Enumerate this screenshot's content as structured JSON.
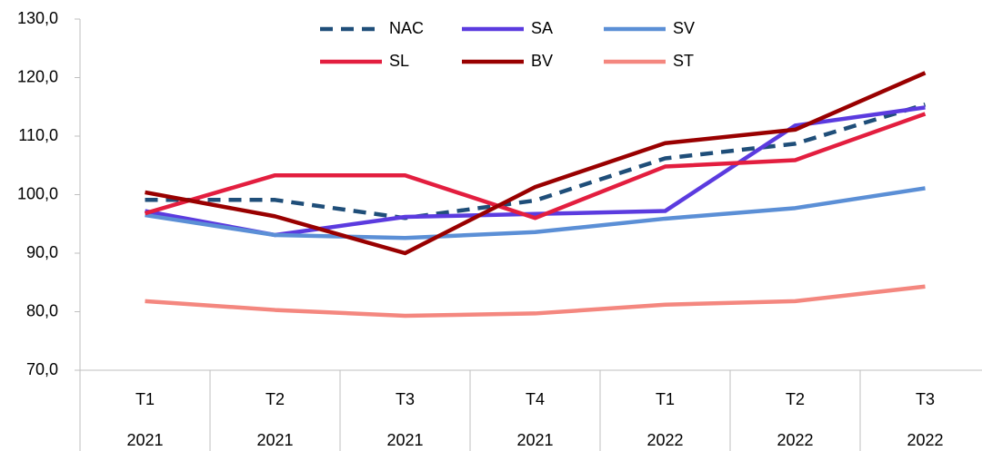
{
  "chart_data": {
    "type": "line",
    "categories": [
      [
        "T1",
        "2021"
      ],
      [
        "T2",
        "2021"
      ],
      [
        "T3",
        "2021"
      ],
      [
        "T4",
        "2021"
      ],
      [
        "T1",
        "2022"
      ],
      [
        "T2",
        "2022"
      ],
      [
        "T3",
        "2022"
      ]
    ],
    "series": [
      {
        "name": "NAC",
        "color": "#1f4e79",
        "dashed": true,
        "values": [
          99.1,
          99.1,
          96.0,
          99.0,
          106.2,
          108.7,
          115.4
        ]
      },
      {
        "name": "SA",
        "color": "#5b3bdf",
        "values": [
          97.2,
          93.1,
          96.2,
          96.7,
          97.2,
          111.8,
          114.9
        ]
      },
      {
        "name": "SV",
        "color": "#5b8fd6",
        "values": [
          96.5,
          93.1,
          92.6,
          93.6,
          95.9,
          97.7,
          101.1
        ]
      },
      {
        "name": "SL",
        "color": "#e31e3f",
        "values": [
          96.8,
          103.3,
          103.3,
          96.0,
          104.8,
          105.9,
          113.8
        ]
      },
      {
        "name": "BV",
        "color": "#990000",
        "values": [
          100.4,
          96.3,
          90.0,
          101.3,
          108.8,
          111.1,
          120.8
        ]
      },
      {
        "name": "ST",
        "color": "#f4877f",
        "values": [
          81.8,
          80.3,
          79.3,
          79.7,
          81.2,
          81.8,
          84.3
        ]
      }
    ],
    "ylim": [
      70,
      130
    ],
    "yticks": [
      {
        "value": 70,
        "label": "70,0"
      },
      {
        "value": 80,
        "label": "80,0"
      },
      {
        "value": 90,
        "label": "90,0"
      },
      {
        "value": 100,
        "label": "100,0"
      },
      {
        "value": 110,
        "label": "110,0"
      },
      {
        "value": 120,
        "label": "120,0"
      },
      {
        "value": 130,
        "label": "130,0"
      }
    ]
  }
}
